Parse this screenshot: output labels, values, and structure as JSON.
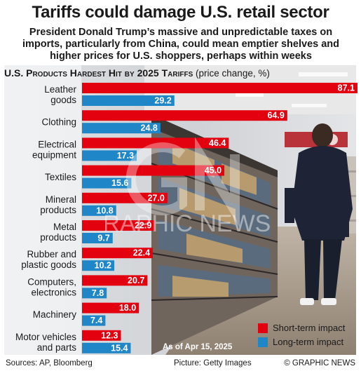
{
  "title": "Tariffs could damage U.S. retail sector",
  "subtitle": "President Donald Trump’s massive and unpredictable taxes on imports, particularly from China, could mean emptier shelves and higher prices for U.S. shoppers, perhaps within weeks",
  "panel": {
    "title_bold": "U.S. Products Hardest Hit by 2025 Tariffs",
    "title_unit": "(price change, %)"
  },
  "chart_data": {
    "type": "bar",
    "orientation": "horizontal",
    "title": "U.S. Products Hardest Hit by 2025 Tariffs (price change, %)",
    "categories": [
      [
        "Leather",
        "goods"
      ],
      [
        "Clothing"
      ],
      [
        "Electrical",
        "equipment"
      ],
      [
        "Textiles"
      ],
      [
        "Mineral",
        "products"
      ],
      [
        "Metal",
        "products"
      ],
      [
        "Rubber and",
        "plastic goods"
      ],
      [
        "Computers,",
        "electronics"
      ],
      [
        "Machinery"
      ],
      [
        "Motor vehicles",
        "and parts"
      ]
    ],
    "series": [
      {
        "name": "Short-term impact",
        "color": "#e3000f",
        "values": [
          87.1,
          64.9,
          46.4,
          45.0,
          27.0,
          22.9,
          22.4,
          20.7,
          18.0,
          12.3
        ]
      },
      {
        "name": "Long-term impact",
        "color": "#1f86c8",
        "values": [
          29.2,
          24.8,
          17.3,
          15.6,
          10.8,
          9.7,
          10.2,
          7.8,
          7.4,
          15.4
        ]
      }
    ],
    "xlim": [
      0,
      87.1
    ],
    "grid": false,
    "legend_position": "bottom-right"
  },
  "legend": [
    {
      "label": "Short-term impact",
      "color": "#e3000f"
    },
    {
      "label": "Long-term impact",
      "color": "#1f86c8"
    }
  ],
  "date_note": "As of Apr 15, 2025",
  "footer": {
    "sources": "Sources: AP, Bloomberg",
    "credit": "Picture: Getty Images",
    "copyright": "© GRAPHIC NEWS"
  },
  "watermark": "GRAPHIC NEWS"
}
